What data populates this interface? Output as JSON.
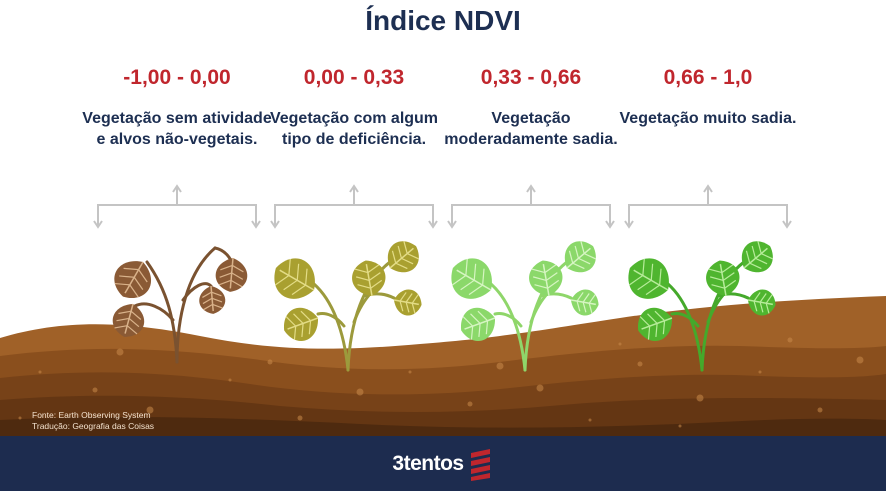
{
  "title": "Índice NDVI",
  "categories": [
    {
      "range": "-1,00 - 0,00",
      "description": "Vegetação sem atividade e alvos não-vegetais.",
      "range_color": "#c0262d",
      "leaf_color": "#8a5a35",
      "leaf_vein": "#d9b28a",
      "stem_color": "#7a5230",
      "plant_icon": "dead-plant-icon"
    },
    {
      "range": "0,00 - 0,33",
      "description": "Vegetação com algum tipo de deficiência.",
      "range_color": "#c0262d",
      "leaf_color": "#a9a030",
      "leaf_vein": "#e3dc86",
      "stem_color": "#9c9a3c",
      "plant_icon": "deficient-plant-icon"
    },
    {
      "range": "0,33 - 0,66",
      "description": "Vegetação moderadamente sadia.",
      "range_color": "#c0262d",
      "leaf_color": "#8bd86a",
      "leaf_vein": "#d6f5c2",
      "stem_color": "#8fd66a",
      "plant_icon": "moderate-plant-icon"
    },
    {
      "range": "0,66 - 1,0",
      "description": "Vegetação muito sadia.",
      "range_color": "#c0262d",
      "leaf_color": "#4fb52f",
      "leaf_vein": "#b7ec9a",
      "stem_color": "#45a92b",
      "plant_icon": "healthy-plant-icon"
    }
  ],
  "source": {
    "line1": "Fonte: Earth Observing System",
    "line2": "Tradução: Geografia das Coisas"
  },
  "footer": {
    "brand": "3tentos"
  },
  "colors": {
    "title": "#1d2f52",
    "footer": "#1d2c4f",
    "bracket": "#c4c4c4",
    "soil_top": "#9a5b25",
    "soil_deep": "#4a2a12"
  }
}
